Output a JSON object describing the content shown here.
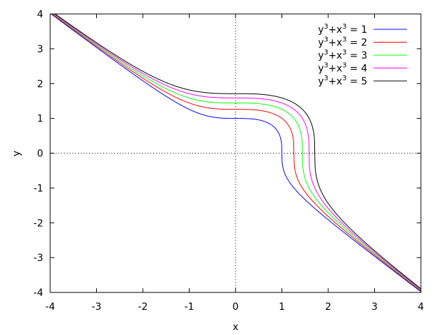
{
  "chart_data": {
    "type": "line",
    "title": "",
    "xlabel": "x",
    "ylabel": "y",
    "xlim": [
      -4,
      4
    ],
    "ylim": [
      -4,
      4
    ],
    "xticks": [
      "-4",
      "-3",
      "-2",
      "-1",
      "0",
      "1",
      "2",
      "3",
      "4"
    ],
    "yticks": [
      "-4",
      "-3",
      "-2",
      "-1",
      "0",
      "1",
      "2",
      "3",
      "4"
    ],
    "zero_axes": "dotted",
    "legend_position": "top-right",
    "equation": "y^3 + x^3 = c",
    "series": [
      {
        "name": "y3+x3 = 1",
        "c": 1,
        "color": "#0000ff"
      },
      {
        "name": "y3+x3 = 2",
        "c": 2,
        "color": "#ff0000"
      },
      {
        "name": "y3+x3 = 3",
        "c": 3,
        "color": "#00ff00"
      },
      {
        "name": "y3+x3 = 4",
        "c": 4,
        "color": "#ff00ff"
      },
      {
        "name": "y3+x3 = 5",
        "c": 5,
        "color": "#000000"
      }
    ]
  }
}
